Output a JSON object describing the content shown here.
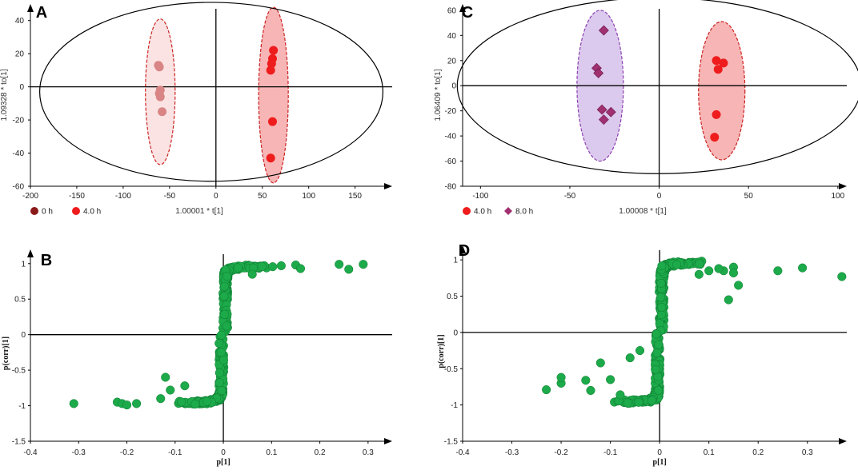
{
  "chart_data": [
    {
      "panel": "A",
      "type": "scatter",
      "xlabel": "1.00001 * t[1]",
      "ylabel": "1.09328 * to[1]",
      "xlim": [
        -200,
        190
      ],
      "ylim": [
        -60,
        50
      ],
      "xticks": [
        -200,
        -150,
        -100,
        -50,
        0,
        50,
        100,
        150
      ],
      "yticks": [
        -60,
        -40,
        -20,
        0,
        20,
        40
      ],
      "hotelling_ellipse": {
        "cx": -5,
        "cy": -3,
        "rx": 185,
        "ry": 54
      },
      "series": [
        {
          "name": "0 h",
          "color": "#d98585",
          "marker": "circle",
          "legend_color": "#8b1a1a",
          "ellipse": {
            "cx": -60,
            "cy": -3,
            "rx": 16,
            "ry": 44,
            "fill": "#fbe3e3",
            "stroke": "#cc2222"
          },
          "points": [
            [
              -62,
              13
            ],
            [
              -61,
              12
            ],
            [
              -60,
              -2
            ],
            [
              -61,
              -4
            ],
            [
              -60,
              -6
            ],
            [
              -58,
              -15
            ]
          ]
        },
        {
          "name": "4.0 h",
          "color": "#ee1c1c",
          "marker": "circle",
          "legend_color": "#ee1c1c",
          "ellipse": {
            "cx": 62,
            "cy": -5,
            "rx": 16,
            "ry": 53,
            "fill": "#f7b5b5",
            "stroke": "#cc2222"
          },
          "points": [
            [
              62,
              22
            ],
            [
              61,
              17
            ],
            [
              60,
              14
            ],
            [
              59,
              10
            ],
            [
              61,
              -21
            ],
            [
              59,
              -43
            ]
          ]
        }
      ]
    },
    {
      "panel": "B",
      "type": "scatter",
      "xlabel": "p[1]",
      "ylabel": "p(corr)[1]",
      "xlim": [
        -0.4,
        0.35
      ],
      "ylim": [
        -1.5,
        1.2
      ],
      "xticks": [
        -0.4,
        -0.3,
        -0.2,
        -0.1,
        0,
        0.1,
        0.2,
        0.3
      ],
      "yticks": [
        -1.5,
        -1,
        -0.5,
        0,
        0.5,
        1
      ],
      "color": "#1daa4a",
      "outliers": [
        [
          -0.31,
          -0.97
        ],
        [
          -0.22,
          -0.95
        ],
        [
          -0.21,
          -0.97
        ],
        [
          -0.2,
          -0.99
        ],
        [
          -0.18,
          -0.97
        ],
        [
          -0.13,
          -0.9
        ],
        [
          -0.12,
          -0.6
        ],
        [
          -0.11,
          -0.78
        ],
        [
          -0.08,
          -0.72
        ],
        [
          0.15,
          0.98
        ],
        [
          0.16,
          0.93
        ],
        [
          0.12,
          0.97
        ],
        [
          0.24,
          0.99
        ],
        [
          0.26,
          0.92
        ],
        [
          0.29,
          0.99
        ],
        [
          0.08,
          0.96
        ],
        [
          0.06,
          0.85
        ]
      ]
    },
    {
      "panel": "C",
      "type": "scatter",
      "xlabel": "1.00008 * t[1]",
      "ylabel": "1.06409 * to[1]",
      "xlim": [
        -110,
        105
      ],
      "ylim": [
        -80,
        65
      ],
      "xticks": [
        -100,
        -50,
        0,
        50,
        100
      ],
      "yticks": [
        -80,
        -60,
        -40,
        -20,
        0,
        20,
        40,
        60
      ],
      "hotelling_ellipse": {
        "cx": 0,
        "cy": 0,
        "rx": 113,
        "ry": 70
      },
      "series": [
        {
          "name": "4.0 h",
          "color": "#ee1c1c",
          "marker": "circle",
          "legend_color": "#ee1c1c",
          "ellipse": {
            "cx": 35,
            "cy": -4,
            "rx": 13,
            "ry": 55,
            "fill": "#f7b5b5",
            "stroke": "#cc2222"
          },
          "points": [
            [
              32,
              20
            ],
            [
              36,
              18
            ],
            [
              33,
              13
            ],
            [
              32,
              -23
            ],
            [
              31,
              -41
            ]
          ]
        },
        {
          "name": "8.0 h",
          "color": "#a03070",
          "marker": "diamond",
          "legend_color": "#a03070",
          "ellipse": {
            "cx": -33,
            "cy": 0,
            "rx": 13,
            "ry": 60,
            "fill": "#dcc9ee",
            "stroke": "#8a3fb0"
          },
          "points": [
            [
              -31,
              44
            ],
            [
              -35,
              14
            ],
            [
              -34,
              10
            ],
            [
              -32,
              -19
            ],
            [
              -27,
              -21
            ],
            [
              -31,
              -27
            ]
          ]
        }
      ]
    },
    {
      "panel": "D",
      "type": "scatter",
      "xlabel": "p[1]",
      "ylabel": "p(corr)[1]",
      "xlim": [
        -0.4,
        0.38
      ],
      "ylim": [
        -1.5,
        1.2
      ],
      "xticks": [
        -0.4,
        -0.3,
        -0.2,
        -0.1,
        0,
        0.1,
        0.2,
        0.3
      ],
      "yticks": [
        -1.5,
        -1,
        -0.5,
        0,
        0.5,
        1
      ],
      "color": "#1daa4a",
      "outliers": [
        [
          -0.23,
          -0.79
        ],
        [
          -0.2,
          -0.7
        ],
        [
          -0.2,
          -0.62
        ],
        [
          -0.15,
          -0.66
        ],
        [
          -0.14,
          -0.8
        ],
        [
          -0.12,
          -0.42
        ],
        [
          -0.1,
          -0.65
        ],
        [
          -0.08,
          -0.86
        ],
        [
          -0.06,
          -0.35
        ],
        [
          -0.04,
          -0.25
        ],
        [
          0.13,
          0.85
        ],
        [
          0.15,
          0.9
        ],
        [
          0.15,
          0.82
        ],
        [
          0.16,
          0.65
        ],
        [
          0.14,
          0.45
        ],
        [
          0.24,
          0.85
        ],
        [
          0.29,
          0.89
        ],
        [
          0.37,
          0.77
        ],
        [
          0.1,
          0.85
        ],
        [
          0.08,
          0.8
        ],
        [
          0.12,
          0.88
        ]
      ]
    }
  ]
}
